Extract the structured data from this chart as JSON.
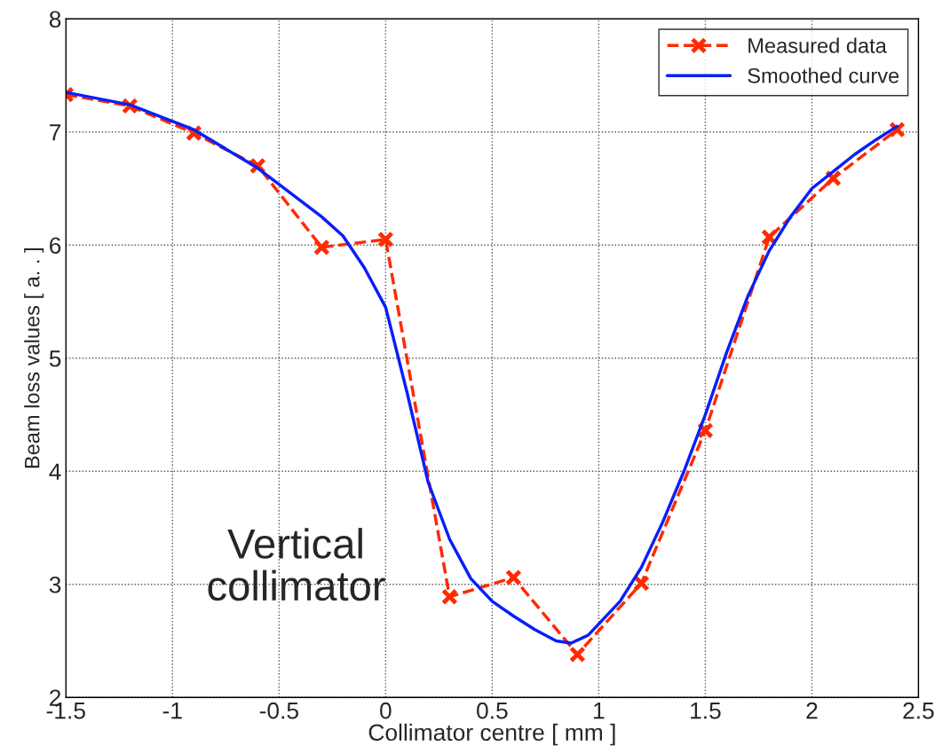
{
  "chart_data": {
    "type": "line",
    "xlabel": "Collimator centre [ mm ]",
    "ylabel": "Beam loss values [ a. . ]",
    "xlim": [
      -1.5,
      2.5
    ],
    "xticks": [
      -1.5,
      -1,
      -0.5,
      0,
      0.5,
      1,
      1.5,
      2,
      2.5
    ],
    "ylim": [
      2,
      8
    ],
    "yticks": [
      2,
      3,
      4,
      5,
      6,
      7,
      8
    ],
    "grid": true,
    "legend": "top right",
    "annotations": [
      "Vertical\ncollimator"
    ],
    "series": [
      {
        "name": "Measured data",
        "color": "#ff2a00",
        "marker": "cross",
        "line_style": "dashed",
        "x": [
          -1.5,
          -1.2,
          -0.9,
          -0.6,
          -0.3,
          0,
          0.3,
          0.6,
          0.9,
          1.2,
          1.5,
          1.8,
          2.1,
          2.4
        ],
        "values": [
          7.33,
          7.23,
          6.99,
          6.7,
          5.98,
          6.05,
          2.89,
          3.06,
          2.38,
          3.01,
          4.36,
          6.07,
          6.59,
          7.02
        ]
      },
      {
        "name": "Smoothed curve",
        "color": "#0a1efa",
        "marker": "none",
        "line_style": "solid",
        "x": [
          -1.5,
          -1.2,
          -0.9,
          -0.6,
          -0.3,
          -0.2,
          -0.1,
          0,
          0.1,
          0.2,
          0.3,
          0.4,
          0.5,
          0.6,
          0.7,
          0.8,
          0.87,
          0.95,
          1.1,
          1.2,
          1.3,
          1.4,
          1.5,
          1.6,
          1.7,
          1.8,
          1.9,
          2.0,
          2.1,
          2.2,
          2.3,
          2.4
        ],
        "values": [
          7.35,
          7.24,
          7.02,
          6.68,
          6.25,
          6.08,
          5.8,
          5.45,
          4.7,
          3.9,
          3.4,
          3.05,
          2.85,
          2.72,
          2.6,
          2.5,
          2.48,
          2.55,
          2.85,
          3.15,
          3.55,
          4.0,
          4.5,
          5.05,
          5.55,
          5.95,
          6.25,
          6.5,
          6.65,
          6.8,
          6.93,
          7.05
        ]
      }
    ]
  }
}
